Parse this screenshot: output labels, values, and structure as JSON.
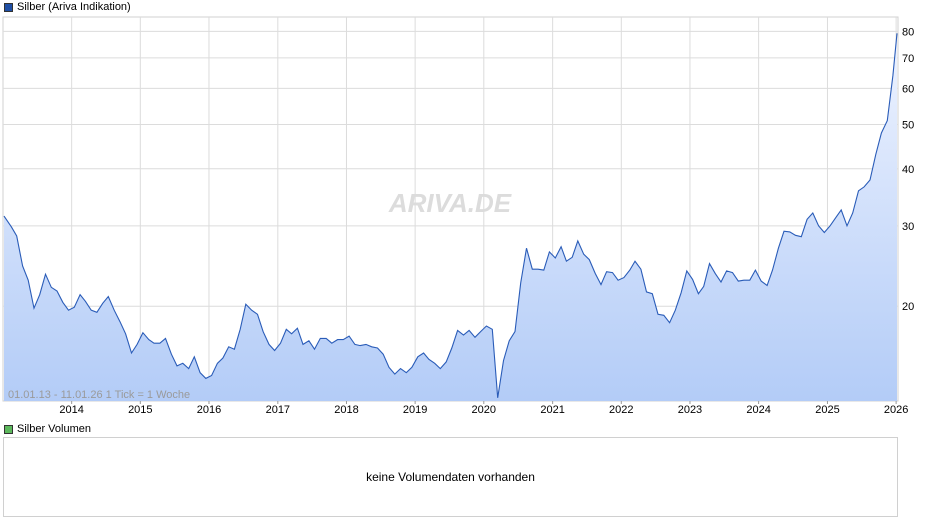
{
  "legend_main": {
    "label": "Silber (Ariva Indikation)",
    "color": "#1f4fa5"
  },
  "legend_volume": {
    "label": "Silber Volumen",
    "color": "#5cb85c"
  },
  "watermark": "ARIVA.DE",
  "range_info": "01.01.13 - 11.01.26   1 Tick = 1 Woche",
  "volume_message": "keine Volumendaten vorhanden",
  "chart_data": {
    "type": "area",
    "title": "Silber (Ariva Indikation)",
    "xlabel": "",
    "ylabel": "",
    "y_scale": "log",
    "ylim": [
      12.4,
      86
    ],
    "xlim": [
      "2013-01-01",
      "2026-01-11"
    ],
    "y_ticks": [
      20,
      30,
      40,
      50,
      60,
      70,
      80
    ],
    "x_ticks": [
      "2014",
      "2015",
      "2016",
      "2017",
      "2018",
      "2019",
      "2020",
      "2021",
      "2022",
      "2023",
      "2024",
      "2025",
      "2026"
    ],
    "grid": true,
    "colors": {
      "line": "#2a5cb8",
      "fill_top": "#eef3ff",
      "fill_bottom": "#b3ccf7"
    },
    "series": [
      {
        "name": "Silber",
        "x": [
          "2013-01",
          "2013-02",
          "2013-03",
          "2013-04",
          "2013-05",
          "2013-06",
          "2013-07",
          "2013-08",
          "2013-09",
          "2013-10",
          "2013-11",
          "2013-12",
          "2014-01",
          "2014-02",
          "2014-03",
          "2014-04",
          "2014-05",
          "2014-06",
          "2014-07",
          "2014-08",
          "2014-09",
          "2014-10",
          "2014-11",
          "2014-12",
          "2015-01",
          "2015-02",
          "2015-03",
          "2015-04",
          "2015-05",
          "2015-06",
          "2015-07",
          "2015-08",
          "2015-09",
          "2015-10",
          "2015-11",
          "2015-12",
          "2016-01",
          "2016-02",
          "2016-03",
          "2016-04",
          "2016-05",
          "2016-06",
          "2016-07",
          "2016-08",
          "2016-09",
          "2016-10",
          "2016-11",
          "2016-12",
          "2017-01",
          "2017-02",
          "2017-03",
          "2017-04",
          "2017-05",
          "2017-06",
          "2017-07",
          "2017-08",
          "2017-09",
          "2017-10",
          "2017-11",
          "2017-12",
          "2018-01",
          "2018-02",
          "2018-03",
          "2018-04",
          "2018-05",
          "2018-06",
          "2018-07",
          "2018-08",
          "2018-09",
          "2018-10",
          "2018-11",
          "2018-12",
          "2019-01",
          "2019-02",
          "2019-03",
          "2019-04",
          "2019-05",
          "2019-06",
          "2019-07",
          "2019-08",
          "2019-09",
          "2019-10",
          "2019-11",
          "2019-12",
          "2020-01",
          "2020-02",
          "2020-03",
          "2020-04",
          "2020-05",
          "2020-06",
          "2020-07",
          "2020-08",
          "2020-09",
          "2020-10",
          "2020-11",
          "2020-12",
          "2021-01",
          "2021-02",
          "2021-03",
          "2021-04",
          "2021-05",
          "2021-06",
          "2021-07",
          "2021-08",
          "2021-09",
          "2021-10",
          "2021-11",
          "2021-12",
          "2022-01",
          "2022-02",
          "2022-03",
          "2022-04",
          "2022-05",
          "2022-06",
          "2022-07",
          "2022-08",
          "2022-09",
          "2022-10",
          "2022-11",
          "2022-12",
          "2023-01",
          "2023-02",
          "2023-03",
          "2023-04",
          "2023-05",
          "2023-06",
          "2023-07",
          "2023-08",
          "2023-09",
          "2023-10",
          "2023-11",
          "2023-12",
          "2024-01",
          "2024-02",
          "2024-03",
          "2024-04",
          "2024-05",
          "2024-06",
          "2024-07",
          "2024-08",
          "2024-09",
          "2024-10",
          "2024-11",
          "2024-12",
          "2025-01",
          "2025-02",
          "2025-03",
          "2025-04",
          "2025-05",
          "2025-06",
          "2025-07",
          "2025-08",
          "2025-09",
          "2025-10",
          "2025-11",
          "2025-12",
          "2026-01"
        ],
        "values": [
          31.5,
          29.8,
          28.5,
          24.5,
          22.8,
          19.8,
          21.2,
          23.5,
          22.0,
          21.6,
          20.4,
          19.6,
          19.9,
          21.2,
          20.5,
          19.6,
          19.4,
          20.3,
          21.0,
          19.6,
          18.5,
          17.4,
          15.8,
          16.5,
          17.5,
          16.9,
          16.6,
          16.6,
          17.0,
          15.7,
          14.8,
          15.0,
          14.6,
          15.5,
          14.3,
          13.9,
          14.1,
          15.0,
          15.4,
          16.3,
          16.1,
          17.8,
          20.2,
          19.6,
          19.2,
          17.6,
          16.5,
          16.0,
          16.6,
          17.8,
          17.4,
          17.9,
          16.5,
          16.8,
          16.1,
          17.0,
          17.0,
          16.6,
          16.9,
          16.9,
          17.2,
          16.5,
          16.4,
          16.5,
          16.3,
          16.2,
          15.7,
          14.7,
          14.2,
          14.6,
          14.3,
          14.7,
          15.5,
          15.8,
          15.3,
          15.0,
          14.6,
          15.1,
          16.2,
          17.7,
          17.3,
          17.7,
          17.1,
          17.6,
          18.1,
          17.8,
          12.6,
          15.2,
          16.8,
          17.6,
          22.5,
          26.8,
          24.1,
          24.1,
          24.0,
          26.3,
          25.5,
          27.0,
          25.1,
          25.6,
          27.8,
          26.0,
          25.3,
          23.6,
          22.3,
          23.8,
          23.7,
          22.8,
          23.1,
          24.0,
          25.1,
          24.1,
          21.5,
          21.3,
          19.2,
          19.1,
          18.4,
          19.6,
          21.4,
          23.9,
          22.9,
          21.3,
          22.1,
          24.8,
          23.6,
          22.6,
          23.9,
          23.7,
          22.7,
          22.8,
          22.8,
          24.0,
          22.7,
          22.2,
          24.0,
          26.8,
          29.2,
          29.1,
          28.6,
          28.4,
          31.0,
          32.0,
          30.0,
          29.0,
          30.0,
          31.3,
          32.5,
          30.0,
          32.0,
          35.8,
          36.5,
          37.8,
          43.0,
          47.9,
          51.0,
          64.0,
          79.2
        ]
      }
    ]
  }
}
